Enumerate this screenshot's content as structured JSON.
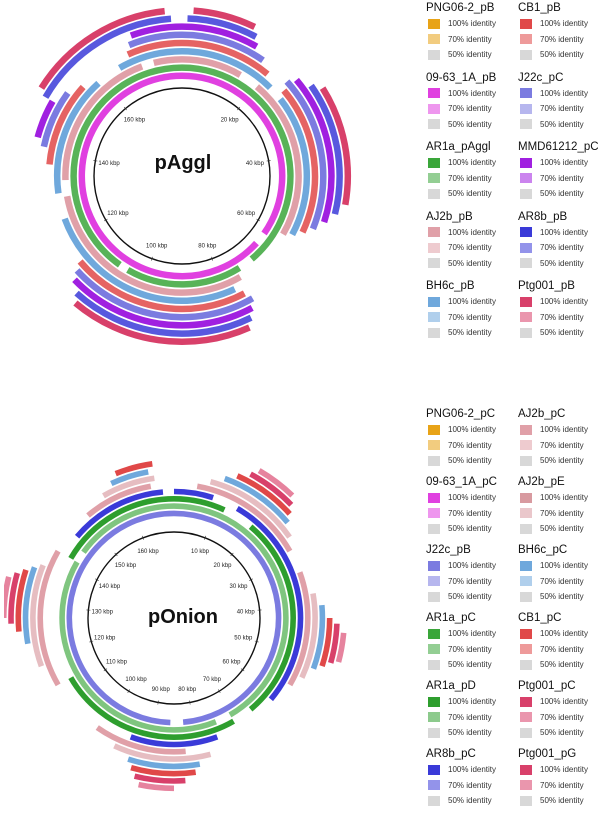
{
  "top": {
    "title": "pAggl",
    "kbp_labels": [
      "20 kbp",
      "40 kbp",
      "60 kbp",
      "80 kbp",
      "100 kbp",
      "120 kbp",
      "140 kbp",
      "160 kbp"
    ],
    "legend_col1": [
      {
        "name": "PNG06-2_pB",
        "color": "#e8a317"
      },
      {
        "name": "09-63_1A_pB",
        "color": "#e040e0"
      },
      {
        "name": "AR1a_pAggl",
        "color": "#3aa63a"
      },
      {
        "name": "AJ2b_pB",
        "color": "#e0a0a8"
      },
      {
        "name": "BH6c_pB",
        "color": "#6fa8dc"
      }
    ],
    "legend_col2": [
      {
        "name": "CB1_pB",
        "color": "#e04848"
      },
      {
        "name": "J22c_pC",
        "color": "#7b7be0"
      },
      {
        "name": "MMD61212_pC",
        "color": "#a020e0"
      },
      {
        "name": "AR8b_pB",
        "color": "#3a3ad8"
      },
      {
        "name": "Ptg001_pB",
        "color": "#d8406a"
      }
    ]
  },
  "bottom": {
    "title": "pOnion",
    "kbp_labels": [
      "10 kbp",
      "20 kbp",
      "30 kbp",
      "40 kbp",
      "50 kbp",
      "60 kbp",
      "70 kbp",
      "80 kbp",
      "90 kbp",
      "100 kbp",
      "110 kbp",
      "120 kbp",
      "130 kbp",
      "140 kbp",
      "150 kbp",
      "160 kbp"
    ],
    "legend_col1": [
      {
        "name": "PNG06-2_pC",
        "color": "#e8a317"
      },
      {
        "name": "09-63_1A_pC",
        "color": "#e040e0"
      },
      {
        "name": "J22c_pB",
        "color": "#7b7be0"
      },
      {
        "name": "AR1a_pC",
        "color": "#3aa63a"
      },
      {
        "name": "AR1a_pD",
        "color": "#2e9e2e"
      },
      {
        "name": "AR8b_pC",
        "color": "#3a3ad8"
      }
    ],
    "legend_col2": [
      {
        "name": "AJ2b_pC",
        "color": "#e0a0a8"
      },
      {
        "name": "AJ2b_pE",
        "color": "#d89aa0"
      },
      {
        "name": "BH6c_pC",
        "color": "#6fa8dc"
      },
      {
        "name": "CB1_pC",
        "color": "#e04848"
      },
      {
        "name": "Ptg001_pC",
        "color": "#d8406a"
      },
      {
        "name": "Ptg001_pG",
        "color": "#d8406a"
      }
    ]
  },
  "identity_labels": [
    "100% identity",
    "70% identity",
    "50% identity"
  ]
}
